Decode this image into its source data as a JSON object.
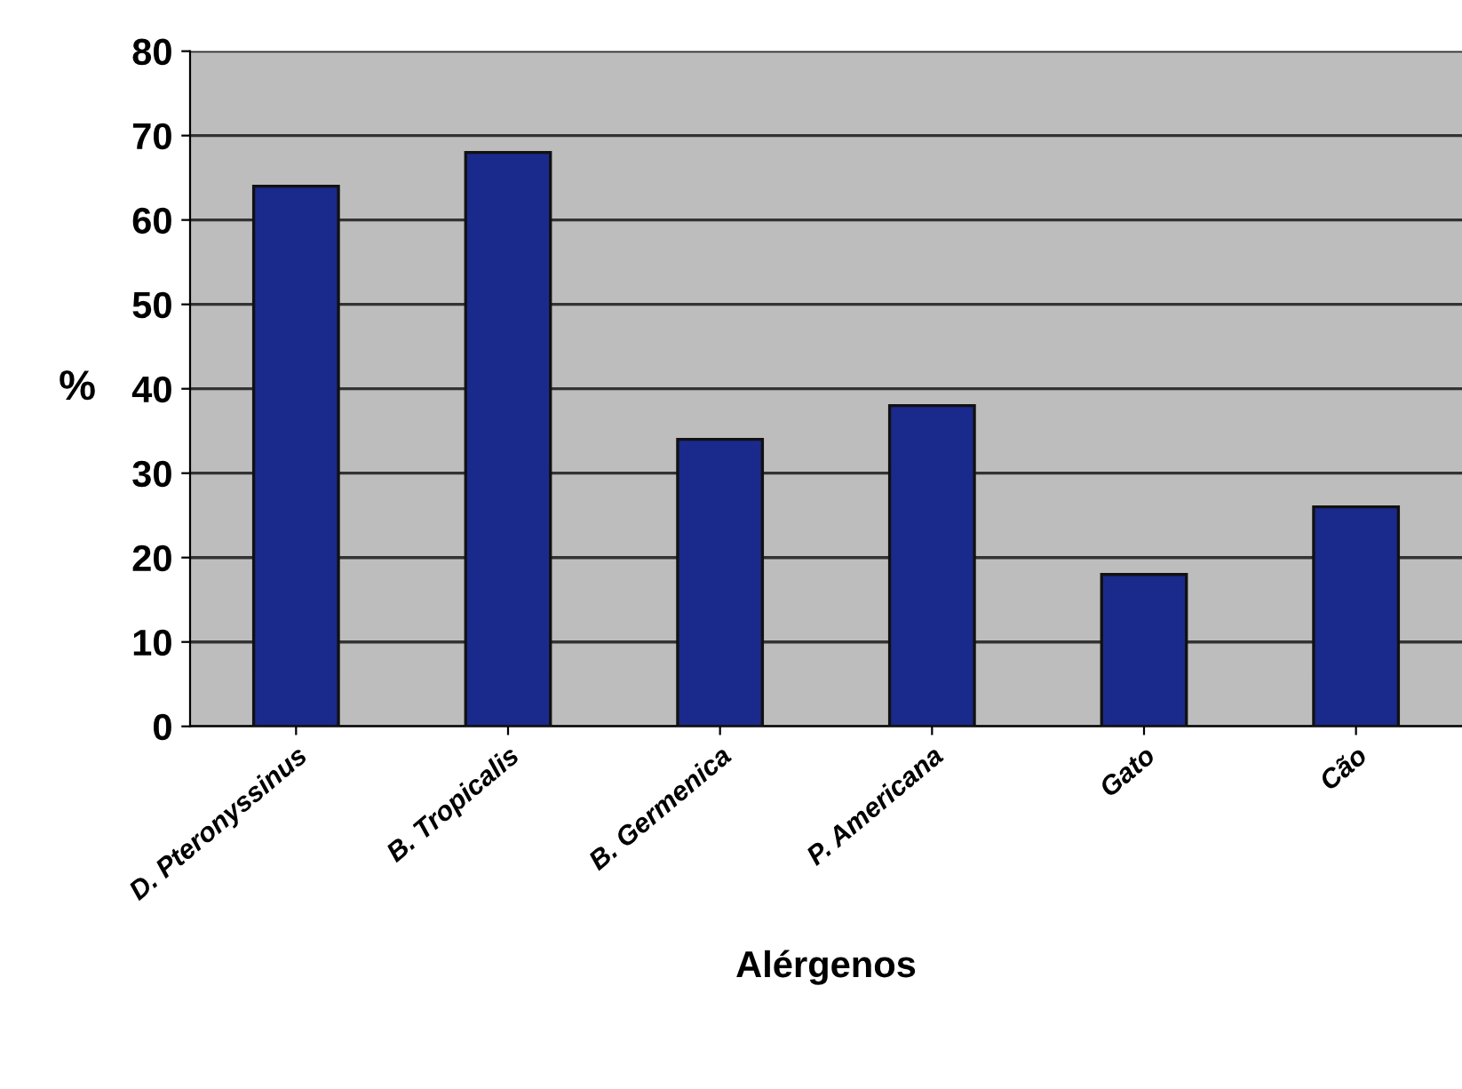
{
  "chart_data": {
    "type": "bar",
    "xlabel": "Alérgenos",
    "ylabel": "%",
    "categories": [
      "D. Pteronyssinus",
      "B. Tropicalis",
      "B. Germenica",
      "P. Americana",
      "Gato",
      "Cão"
    ],
    "values": [
      64,
      68,
      34,
      38,
      18,
      26
    ],
    "color": "#1a2a8c",
    "ylim": [
      0,
      80
    ],
    "yticks": [
      0,
      10,
      20,
      30,
      40,
      50,
      60,
      70,
      80
    ],
    "grid": "y",
    "legend": false
  }
}
